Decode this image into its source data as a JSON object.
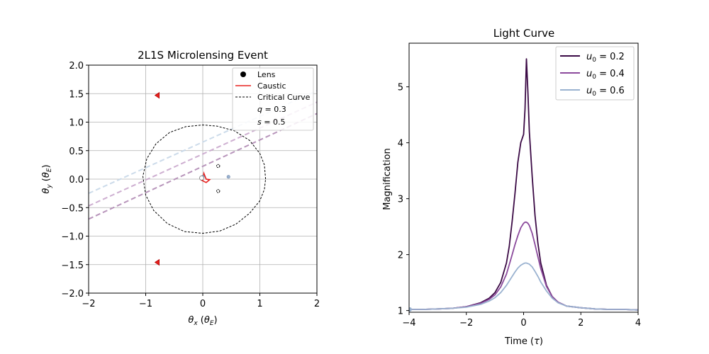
{
  "chart_data": [
    {
      "type": "line",
      "title": "2L1S Microlensing Event",
      "xlabel_main": "θ",
      "xlabel_sub": "x",
      "xlabel_unit_main": "θ",
      "xlabel_unit_sub": "E",
      "ylabel_main": "θ",
      "ylabel_sub": "y",
      "ylabel_unit_main": "θ",
      "ylabel_unit_sub": "E",
      "xlim": [
        -2,
        2
      ],
      "ylim": [
        -2,
        2
      ],
      "xticks": [
        -2,
        -1,
        0,
        1,
        2
      ],
      "xtick_labels": [
        "−2",
        "−1",
        "0",
        "1",
        "2"
      ],
      "yticks": [
        -2.0,
        -1.5,
        -1.0,
        -0.5,
        0.0,
        0.5,
        1.0,
        1.5,
        2.0
      ],
      "ytick_labels": [
        "−2.0",
        "−1.5",
        "−1.0",
        "−0.5",
        "0.0",
        "0.5",
        "1.0",
        "1.5",
        "2.0"
      ],
      "grid": true,
      "legend_position": "top-right",
      "legend": [
        {
          "label": "Lens",
          "marker": "dot",
          "color": "#000000"
        },
        {
          "label": "Caustic",
          "marker": "line",
          "color": "#e8211e"
        },
        {
          "label": "Critical Curve",
          "marker": "dashed",
          "color": "#000000"
        },
        {
          "label_main": "q",
          "label_value": " = 0.3",
          "marker": "none"
        },
        {
          "label_main": "s",
          "label_value": " = 0.5",
          "marker": "none"
        }
      ],
      "lenses": [
        {
          "x": 0.0,
          "y": 0.04
        },
        {
          "x": 0.45,
          "y": 0.04
        }
      ],
      "critical_curve": [
        [
          1.1,
          0.0
        ],
        [
          1.08,
          0.25
        ],
        [
          1.0,
          0.45
        ],
        [
          0.82,
          0.68
        ],
        [
          0.55,
          0.85
        ],
        [
          0.25,
          0.93
        ],
        [
          0.0,
          0.95
        ],
        [
          -0.3,
          0.92
        ],
        [
          -0.58,
          0.82
        ],
        [
          -0.82,
          0.62
        ],
        [
          -0.98,
          0.36
        ],
        [
          -1.05,
          0.05
        ],
        [
          -1.0,
          -0.28
        ],
        [
          -0.86,
          -0.55
        ],
        [
          -0.62,
          -0.78
        ],
        [
          -0.32,
          -0.92
        ],
        [
          0.0,
          -0.95
        ],
        [
          0.3,
          -0.91
        ],
        [
          0.58,
          -0.79
        ],
        [
          0.82,
          -0.6
        ],
        [
          1.0,
          -0.38
        ],
        [
          1.08,
          -0.18
        ],
        [
          1.1,
          0.0
        ]
      ],
      "caustic_central": [
        [
          -0.04,
          -0.01
        ],
        [
          0.06,
          -0.06
        ],
        [
          0.12,
          -0.01
        ],
        [
          0.06,
          0.0
        ],
        [
          0.02,
          0.1
        ],
        [
          0.0,
          -0.02
        ],
        [
          -0.04,
          -0.01
        ]
      ],
      "caustic_planetary": [
        {
          "x": -0.8,
          "y": 1.47
        },
        {
          "x": -0.8,
          "y": -1.46
        }
      ],
      "small_loops": [
        {
          "x": 0.27,
          "y": 0.23
        },
        {
          "x": 0.27,
          "y": -0.21
        }
      ],
      "trajectories": [
        {
          "color": "#c7d7e8",
          "points": [
            [
              -2,
              -0.25
            ],
            [
              2,
              1.55
            ]
          ]
        },
        {
          "color": "#c9a6cc",
          "points": [
            [
              -2,
              -0.47
            ],
            [
              2,
              1.35
            ]
          ]
        },
        {
          "color": "#b089b4",
          "points": [
            [
              -2,
              -0.7
            ],
            [
              2,
              1.15
            ]
          ]
        }
      ],
      "source_marker": {
        "x": -0.02,
        "y": 0.02
      }
    },
    {
      "type": "line",
      "title": "Light Curve",
      "xlabel_main": "Time (",
      "xlabel_symbol": "τ",
      "xlabel_end": ")",
      "ylabel": "Magnification",
      "xlim": [
        -4,
        4
      ],
      "ylim": [
        0.97,
        5.78
      ],
      "xticks": [
        -4,
        -2,
        0,
        2,
        4
      ],
      "xtick_labels": [
        "−4",
        "−2",
        "0",
        "2",
        "4"
      ],
      "yticks": [
        1,
        2,
        3,
        4,
        5
      ],
      "ytick_labels": [
        "1",
        "2",
        "3",
        "4",
        "5"
      ],
      "grid": false,
      "legend_position": "top-right",
      "x": [
        -4,
        -3.5,
        -3,
        -2.5,
        -2,
        -1.5,
        -1.2,
        -1,
        -0.8,
        -0.6,
        -0.5,
        -0.4,
        -0.3,
        -0.2,
        -0.1,
        0,
        0.05,
        0.1,
        0.15,
        0.2,
        0.3,
        0.4,
        0.5,
        0.6,
        0.8,
        1,
        1.2,
        1.5,
        2,
        2.5,
        3,
        3.5,
        4
      ],
      "series": [
        {
          "label_main": "u",
          "label_sub": "0",
          "label_value": " = 0.2",
          "color": "#3b0a45",
          "values": [
            1.02,
            1.02,
            1.03,
            1.04,
            1.07,
            1.14,
            1.22,
            1.32,
            1.5,
            1.85,
            2.15,
            2.6,
            3.1,
            3.65,
            4.0,
            4.15,
            4.6,
            5.5,
            4.9,
            4.2,
            3.4,
            2.7,
            2.2,
            1.85,
            1.45,
            1.25,
            1.15,
            1.08,
            1.05,
            1.03,
            1.02,
            1.02,
            1.01
          ]
        },
        {
          "label_main": "u",
          "label_sub": "0",
          "label_value": " = 0.4",
          "color": "#8b4a9c",
          "values": [
            1.02,
            1.02,
            1.03,
            1.04,
            1.07,
            1.13,
            1.2,
            1.28,
            1.42,
            1.65,
            1.82,
            2.0,
            2.18,
            2.34,
            2.48,
            2.56,
            2.58,
            2.58,
            2.56,
            2.52,
            2.38,
            2.18,
            1.96,
            1.75,
            1.43,
            1.25,
            1.15,
            1.08,
            1.05,
            1.03,
            1.02,
            1.02,
            1.01
          ]
        },
        {
          "label_main": "u",
          "label_sub": "0",
          "label_value": " = 0.6",
          "color": "#9ab2d0",
          "values": [
            1.02,
            1.02,
            1.03,
            1.04,
            1.06,
            1.11,
            1.17,
            1.23,
            1.32,
            1.45,
            1.53,
            1.61,
            1.69,
            1.76,
            1.81,
            1.84,
            1.85,
            1.85,
            1.84,
            1.83,
            1.78,
            1.7,
            1.61,
            1.51,
            1.35,
            1.22,
            1.14,
            1.08,
            1.05,
            1.03,
            1.02,
            1.02,
            1.01
          ]
        }
      ]
    }
  ]
}
